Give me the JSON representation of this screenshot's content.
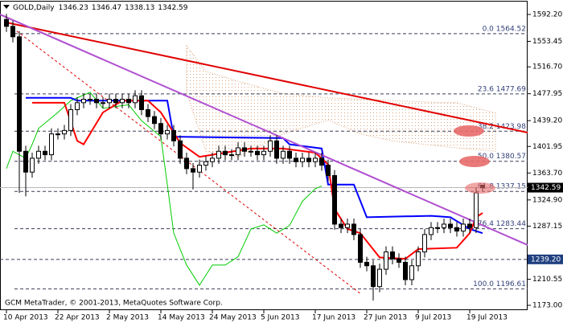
{
  "chart_data": {
    "type": "candlestick",
    "symbol": "GOLD,Daily",
    "footer": "GCM MetaTrader, © 2001-2013, MetaQuotes Software Corp.",
    "xlim": [
      -1,
      81
    ],
    "ylim": [
      1166.05,
      1610.7
    ],
    "xticks": [
      {
        "value": 0,
        "label": "10 Apr 2013"
      },
      {
        "value": 8,
        "label": "22 Apr 2013"
      },
      {
        "value": 16,
        "label": "2 May 2013"
      },
      {
        "value": 24,
        "label": "14 May 2013"
      },
      {
        "value": 32,
        "label": "24 May 2013"
      },
      {
        "value": 40,
        "label": "5 Jun 2013"
      },
      {
        "value": 48,
        "label": "17 Jun 2013"
      },
      {
        "value": 56,
        "label": "27 Jun 2013"
      },
      {
        "value": 64,
        "label": "9 Jul 2013"
      },
      {
        "value": 72,
        "label": "19 Jul 2013"
      }
    ],
    "yticks": [
      {
        "value": 1592.2,
        "label": "1592.20"
      },
      {
        "value": 1553.45,
        "label": "1553.45"
      },
      {
        "value": 1516.7,
        "label": "1516.70"
      },
      {
        "value": 1477.95,
        "label": "1477.95"
      },
      {
        "value": 1439.2,
        "label": "1439.20"
      },
      {
        "value": 1401.95,
        "label": "1401.95"
      },
      {
        "value": 1363.7,
        "label": "1363.70"
      },
      {
        "value": 1324.9,
        "label": "1324.90"
      },
      {
        "value": 1287.15,
        "label": "1287.15"
      },
      {
        "value": 1210.55,
        "label": "1210.55"
      },
      {
        "value": 1173,
        "label": "1173.00"
      }
    ],
    "open": [
      1585,
      1575,
      1560,
      1395,
      1365,
      1385,
      1395,
      1390,
      1420,
      1420,
      1425,
      1455,
      1465,
      1470,
      1470,
      1465,
      1465,
      1470,
      1465,
      1470,
      1465,
      1475,
      1455,
      1445,
      1435,
      1420,
      1425,
      1410,
      1385,
      1370,
      1365,
      1375,
      1380,
      1385,
      1395,
      1390,
      1390,
      1400,
      1395,
      1395,
      1390,
      1395,
      1410,
      1385,
      1395,
      1385,
      1380,
      1385,
      1380,
      1385,
      1375,
      1360,
      1290,
      1285,
      1290,
      1275,
      1235,
      1230,
      1200,
      1225,
      1250,
      1240,
      1235,
      1210,
      1230,
      1250,
      1275,
      1285,
      1285,
      1290,
      1285,
      1280,
      1290,
      1285,
      1346.23
    ],
    "high": [
      1593,
      1583,
      1568,
      1403,
      1393,
      1403,
      1403,
      1428,
      1428,
      1433,
      1463,
      1473,
      1478,
      1478,
      1478,
      1473,
      1478,
      1478,
      1478,
      1478,
      1483,
      1483,
      1463,
      1453,
      1443,
      1433,
      1433,
      1418,
      1393,
      1378,
      1383,
      1388,
      1393,
      1403,
      1403,
      1398,
      1408,
      1408,
      1403,
      1403,
      1403,
      1418,
      1418,
      1403,
      1403,
      1393,
      1393,
      1393,
      1393,
      1393,
      1383,
      1368,
      1298,
      1298,
      1298,
      1283,
      1243,
      1238,
      1233,
      1258,
      1258,
      1248,
      1243,
      1238,
      1258,
      1283,
      1293,
      1293,
      1298,
      1298,
      1293,
      1298,
      1298,
      1343,
      1346.47
    ],
    "low": [
      1567,
      1552,
      1335,
      1330,
      1357,
      1377,
      1382,
      1382,
      1412,
      1412,
      1417,
      1447,
      1457,
      1462,
      1457,
      1457,
      1457,
      1457,
      1457,
      1457,
      1457,
      1447,
      1437,
      1427,
      1412,
      1412,
      1402,
      1377,
      1362,
      1340,
      1357,
      1367,
      1372,
      1377,
      1382,
      1382,
      1382,
      1387,
      1387,
      1382,
      1382,
      1387,
      1377,
      1377,
      1377,
      1372,
      1372,
      1372,
      1372,
      1367,
      1352,
      1282,
      1277,
      1277,
      1267,
      1227,
      1222,
      1180,
      1192,
      1217,
      1232,
      1227,
      1202,
      1202,
      1222,
      1242,
      1267,
      1277,
      1277,
      1277,
      1272,
      1272,
      1277,
      1277,
      1338.13
    ],
    "close": [
      1575,
      1560,
      1395,
      1365,
      1385,
      1395,
      1390,
      1420,
      1420,
      1425,
      1455,
      1465,
      1470,
      1470,
      1465,
      1465,
      1470,
      1465,
      1470,
      1465,
      1475,
      1455,
      1445,
      1435,
      1420,
      1425,
      1410,
      1385,
      1370,
      1365,
      1375,
      1380,
      1385,
      1395,
      1390,
      1390,
      1400,
      1395,
      1395,
      1390,
      1395,
      1410,
      1385,
      1395,
      1385,
      1380,
      1385,
      1380,
      1385,
      1375,
      1360,
      1290,
      1285,
      1290,
      1275,
      1235,
      1230,
      1200,
      1225,
      1250,
      1240,
      1235,
      1210,
      1230,
      1250,
      1275,
      1285,
      1285,
      1290,
      1285,
      1280,
      1290,
      1285,
      1335,
      1342.59
    ],
    "cloud": {
      "color": "#d9a27a",
      "x": [
        28,
        31,
        36,
        43,
        50,
        55,
        60,
        65,
        70,
        76
      ],
      "upper": [
        1547,
        1510,
        1496,
        1478,
        1472,
        1470,
        1468,
        1466,
        1465,
        1450
      ],
      "lower": [
        1480,
        1395,
        1387,
        1420,
        1440,
        1420,
        1410,
        1405,
        1400,
        1395
      ]
    },
    "indicators": [
      {
        "color": "#00cc00",
        "x": [
          0,
          1,
          3,
          4,
          5,
          8,
          10,
          13,
          15,
          19,
          21,
          24,
          25,
          26,
          28,
          30,
          32,
          34,
          36,
          38,
          40,
          42,
          44,
          46,
          48,
          49
        ],
        "values": [
          1370,
          1395,
          1385,
          1405,
          1428,
          1451,
          1468,
          1480,
          1457,
          1462,
          1439,
          1416,
          1347,
          1277,
          1231,
          1202,
          1231,
          1231,
          1243,
          1283,
          1289,
          1277,
          1288,
          1323,
          1341,
          1345
        ]
      },
      {
        "color": "#0000ff",
        "x": [
          3,
          10,
          11,
          25,
          26,
          43,
          44,
          49,
          50,
          54,
          56,
          66,
          69,
          72,
          74
        ],
        "values": [
          1472,
          1472,
          1468,
          1468,
          1416,
          1414,
          1405,
          1399,
          1347,
          1347,
          1300,
          1302,
          1300,
          1283,
          1277
        ]
      },
      {
        "color": "#ff0000",
        "x": [
          4,
          9,
          11,
          12,
          15,
          18,
          22,
          24,
          27,
          30,
          34,
          38,
          43,
          48,
          50,
          51,
          53,
          55,
          58,
          62,
          64,
          70,
          72,
          73,
          74
        ],
        "values": [
          1465,
          1465,
          1410,
          1405,
          1451,
          1468,
          1468,
          1451,
          1407,
          1387,
          1393,
          1399,
          1399,
          1393,
          1376,
          1312,
          1283,
          1277,
          1242,
          1240,
          1254,
          1256,
          1277,
          1300,
          1306
        ]
      }
    ],
    "trendlines": [
      {
        "color": "#e00000",
        "x": [
          0,
          81
        ],
        "values": [
          1580.6,
          1422
        ]
      },
      {
        "color": "#b050d0",
        "x": [
          -1,
          81
        ],
        "values": [
          1592.2,
          1259.9
        ]
      },
      {
        "color": "#e00000",
        "x": [
          1,
          55
        ],
        "values": [
          1572.5,
          1190
        ],
        "dashed": true
      }
    ],
    "fibonacci": [
      {
        "value": 1564.52,
        "label": "0.0 1564.52"
      },
      {
        "value": 1477.69,
        "label": "23.6 1477.69"
      },
      {
        "value": 1423.98,
        "label": "38.2 1423.98"
      },
      {
        "value": 1380.57,
        "label": "50.0 1380.57"
      },
      {
        "value": 1337.15,
        "label": "61.8 1337.15"
      },
      {
        "value": 1283.44,
        "label": "76.4 1283.44"
      },
      {
        "value": 1196.61,
        "label": "100.0 1196.61"
      }
    ],
    "price_level": {
      "value": 1239.2,
      "label": "1239.20"
    }
  }
}
